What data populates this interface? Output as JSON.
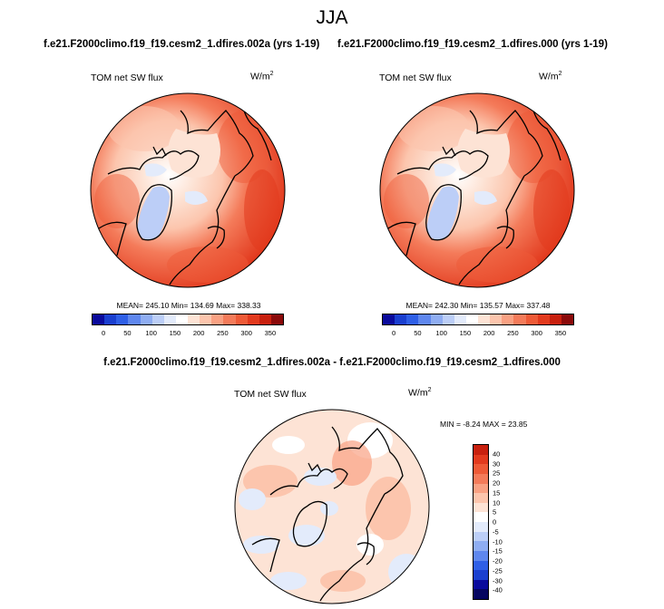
{
  "figure": {
    "title": "JJA",
    "diff_title": "f.e21.F2000climo.f19_f19.cesm2_1.dfires.002a - f.e21.F2000climo.f19_f19.cesm2_1.dfires.000"
  },
  "panels": [
    {
      "case": "f.e21.F2000climo.f19_f19.cesm2_1.dfires.002a (yrs 1-19)",
      "variable": "TOM net SW flux",
      "unit": "W/m",
      "unit_exp": "2",
      "stats": "MEAN= 245.10  Min= 134.69  Max= 338.33"
    },
    {
      "case": "f.e21.F2000climo.f19_f19.cesm2_1.dfires.000 (yrs 1-19)",
      "variable": "TOM net SW flux",
      "unit": "W/m",
      "unit_exp": "2",
      "stats": "MEAN= 242.30  Min= 135.57  Max= 337.48"
    },
    {
      "variable": "TOM net SW flux",
      "unit": "W/m",
      "unit_exp": "2",
      "stats": "MIN =  -8.24 MAX =  23.85"
    }
  ],
  "colorbar_abs": {
    "ticks": [
      "0",
      "50",
      "100",
      "150",
      "200",
      "250",
      "300",
      "350"
    ],
    "colors": [
      "#0a0a9c",
      "#1a3fcf",
      "#2f5fe6",
      "#5f87ee",
      "#8fadf2",
      "#bccef7",
      "#e3ebfb",
      "#ffffff",
      "#fde3d5",
      "#fcc5ad",
      "#f9a183",
      "#f47b5a",
      "#ee5a37",
      "#e23a1e",
      "#c8200e",
      "#8b0a0a"
    ]
  },
  "colorbar_diff": {
    "ticks": [
      "40",
      "30",
      "25",
      "20",
      "15",
      "10",
      "5",
      "0",
      "-5",
      "-10",
      "-15",
      "-20",
      "-25",
      "-30",
      "-40"
    ],
    "colors": [
      "#c8200e",
      "#e23a1e",
      "#ee5a37",
      "#f47b5a",
      "#f9a183",
      "#fcc5ad",
      "#fde3d5",
      "#ffffff",
      "#e3ebfb",
      "#bccef7",
      "#8fadf2",
      "#5f87ee",
      "#2f5fe6",
      "#1a3fcf",
      "#0a0a9c",
      "#050560"
    ]
  }
}
